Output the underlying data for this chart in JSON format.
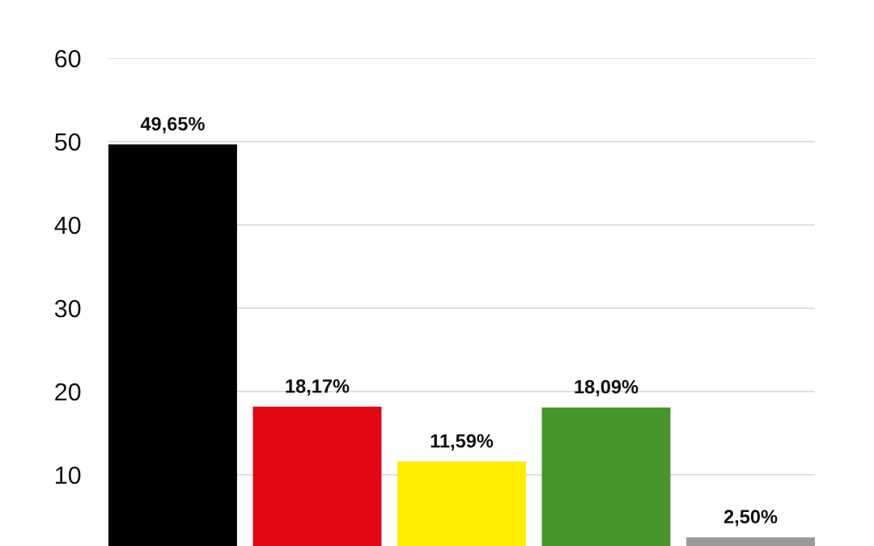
{
  "chart_data": {
    "type": "bar",
    "categories": [
      null,
      null,
      null,
      null,
      null
    ],
    "values": [
      49.65,
      18.17,
      11.59,
      18.09,
      2.5
    ],
    "colors": [
      "#000000",
      "#e30613",
      "#ffed00",
      "#46962b",
      "#9a9a9a"
    ],
    "value_labels": [
      "49,65%",
      "18,17%",
      "11,59%",
      "18,09%",
      "2,50%"
    ],
    "ylim": [
      0,
      60
    ],
    "yticks": [
      10,
      20,
      30,
      40,
      50,
      60
    ],
    "grid": "y"
  }
}
